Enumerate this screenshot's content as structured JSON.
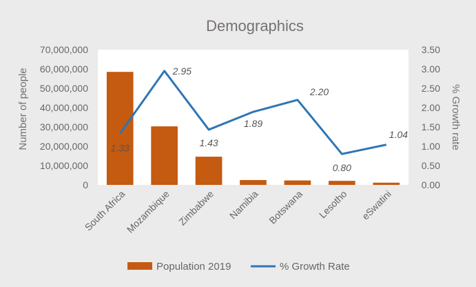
{
  "chart_data": {
    "type": "bar",
    "title": "Demographics",
    "categories": [
      "South Africa",
      "Mozambique",
      "Zimbabwe",
      "Namibia",
      "Botswana",
      "Lesotho",
      "eSwatini"
    ],
    "series": [
      {
        "name": "Population 2019",
        "type": "bar",
        "axis": "left",
        "color": "#c55a11",
        "values": [
          58500000,
          30300000,
          14600000,
          2500000,
          2300000,
          2100000,
          1150000
        ]
      },
      {
        "name": "% Growth Rate",
        "type": "line",
        "axis": "right",
        "color": "#2e75b6",
        "values": [
          1.33,
          2.95,
          1.43,
          1.89,
          2.2,
          0.8,
          1.04
        ],
        "data_labels": [
          "1.33",
          "2.95",
          "1.43",
          "1.89",
          "2.20",
          "0.80",
          "1.04"
        ]
      }
    ],
    "ylabel": "Number of people",
    "y2label": "% Growth rate",
    "ylim": [
      0,
      70000000
    ],
    "y2lim": [
      0,
      3.5
    ],
    "yticks": [
      "0",
      "10,000,000",
      "20,000,000",
      "30,000,000",
      "40,000,000",
      "50,000,000",
      "60,000,000",
      "70,000,000"
    ],
    "y2ticks": [
      "0.00",
      "0.50",
      "1.00",
      "1.50",
      "2.00",
      "2.50",
      "3.00",
      "3.50"
    ],
    "grid": false,
    "legend": "bottom"
  }
}
